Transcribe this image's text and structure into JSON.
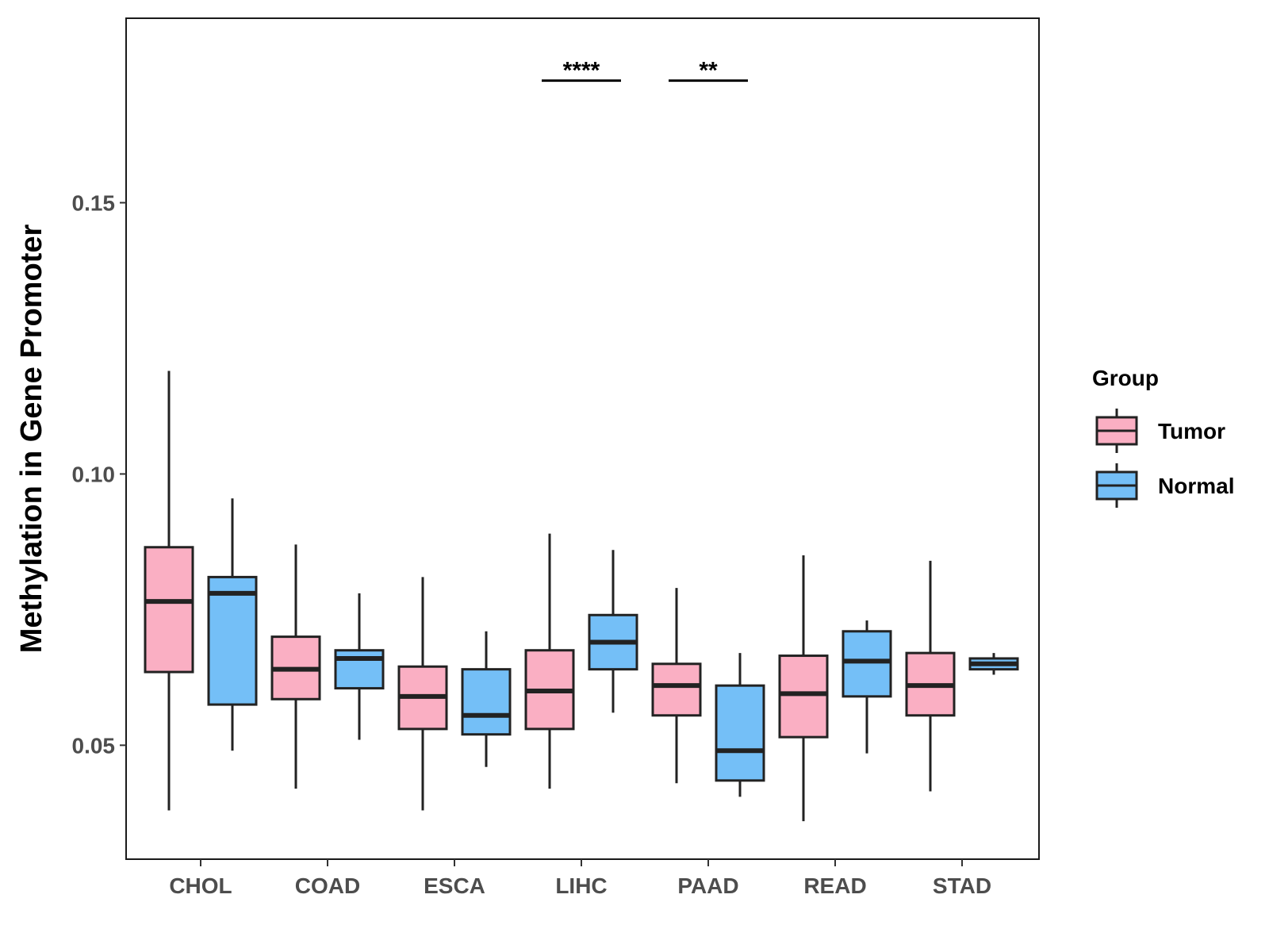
{
  "chart_data": {
    "type": "boxplot",
    "title": "",
    "xlabel": "",
    "ylabel": "Methylation in Gene Promoter",
    "ylim": [
      0.029,
      0.184
    ],
    "yticks": [
      0.05,
      0.1,
      0.15
    ],
    "ytick_labels": [
      "0.05",
      "0.10",
      "0.15"
    ],
    "grid": false,
    "categories": [
      "CHOL",
      "COAD",
      "ESCA",
      "LIHC",
      "PAAD",
      "READ",
      "STAD"
    ],
    "legend": {
      "title": "Group",
      "position": "right",
      "entries": [
        {
          "name": "Tumor",
          "color": "#FAAFC3"
        },
        {
          "name": "Normal",
          "color": "#74BFF7"
        }
      ]
    },
    "series": [
      {
        "name": "Tumor",
        "color": "#FAAFC3",
        "boxes": [
          {
            "whisker_low": 0.038,
            "q1": 0.0635,
            "median": 0.0765,
            "q3": 0.0865,
            "whisker_high": 0.119
          },
          {
            "whisker_low": 0.042,
            "q1": 0.0585,
            "median": 0.064,
            "q3": 0.07,
            "whisker_high": 0.087
          },
          {
            "whisker_low": 0.038,
            "q1": 0.053,
            "median": 0.059,
            "q3": 0.0645,
            "whisker_high": 0.081
          },
          {
            "whisker_low": 0.042,
            "q1": 0.053,
            "median": 0.06,
            "q3": 0.0675,
            "whisker_high": 0.089
          },
          {
            "whisker_low": 0.043,
            "q1": 0.0555,
            "median": 0.061,
            "q3": 0.065,
            "whisker_high": 0.079
          },
          {
            "whisker_low": 0.036,
            "q1": 0.0515,
            "median": 0.0595,
            "q3": 0.0665,
            "whisker_high": 0.085
          },
          {
            "whisker_low": 0.0415,
            "q1": 0.0555,
            "median": 0.061,
            "q3": 0.067,
            "whisker_high": 0.084
          }
        ]
      },
      {
        "name": "Normal",
        "color": "#74BFF7",
        "boxes": [
          {
            "whisker_low": 0.049,
            "q1": 0.0575,
            "median": 0.078,
            "q3": 0.081,
            "whisker_high": 0.0955
          },
          {
            "whisker_low": 0.051,
            "q1": 0.0605,
            "median": 0.066,
            "q3": 0.0675,
            "whisker_high": 0.078
          },
          {
            "whisker_low": 0.046,
            "q1": 0.052,
            "median": 0.0555,
            "q3": 0.064,
            "whisker_high": 0.071
          },
          {
            "whisker_low": 0.056,
            "q1": 0.064,
            "median": 0.069,
            "q3": 0.074,
            "whisker_high": 0.086
          },
          {
            "whisker_low": 0.0405,
            "q1": 0.0435,
            "median": 0.049,
            "q3": 0.061,
            "whisker_high": 0.067
          },
          {
            "whisker_low": 0.0485,
            "q1": 0.059,
            "median": 0.0655,
            "q3": 0.071,
            "whisker_high": 0.073
          },
          {
            "whisker_low": 0.063,
            "q1": 0.064,
            "median": 0.065,
            "q3": 0.066,
            "whisker_high": 0.067
          }
        ]
      }
    ],
    "annotations": [
      {
        "category": "LIHC",
        "text": "****",
        "y": 0.1725
      },
      {
        "category": "PAAD",
        "text": "**",
        "y": 0.1725
      }
    ]
  }
}
